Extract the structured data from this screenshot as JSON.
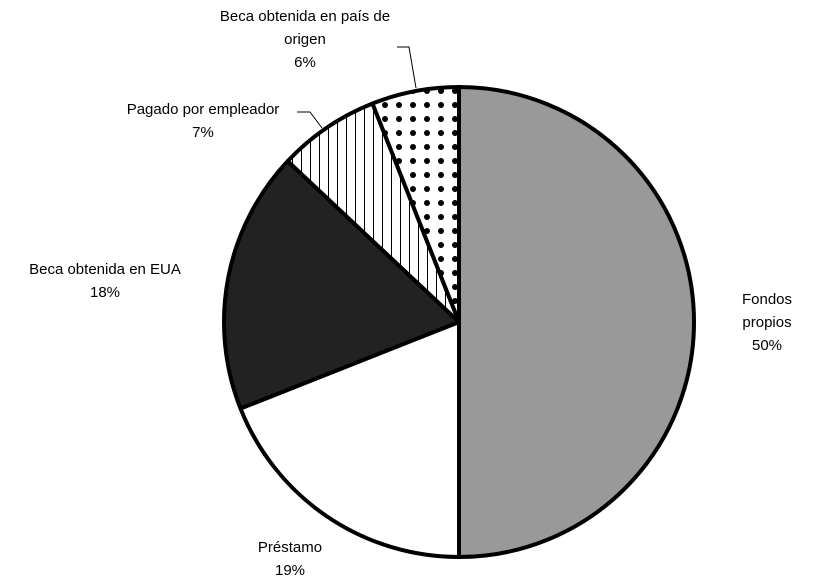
{
  "chart_data": {
    "type": "pie",
    "categories": [
      "Fondos propios",
      "Préstamo",
      "Beca obtenida en EUA",
      "Pagado por empleador",
      "Beca obtenida en país de origen"
    ],
    "values": [
      50,
      19,
      18,
      7,
      6
    ],
    "value_labels": [
      "50%",
      "19%",
      "18%",
      "7%",
      "6%"
    ],
    "colors": [
      "#999999",
      "#ffffff",
      "#222222",
      "pattern-vertical-lines",
      "pattern-dots"
    ],
    "start_angle": 90,
    "direction": "clockwise"
  }
}
